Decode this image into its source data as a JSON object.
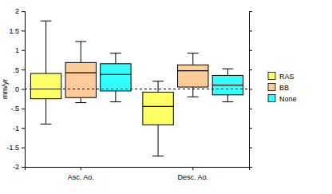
{
  "chart_data": {
    "type": "box",
    "y_label": "mm/yr",
    "categories": [
      "Asc. Ao.",
      "Desc. Ao."
    ],
    "series": [
      {
        "name": "RAS",
        "color": "#ffff66",
        "values": [
          {
            "min": -0.9,
            "q1": -0.25,
            "median": 0.0,
            "q3": 0.4,
            "max": 1.75
          },
          {
            "min": -1.72,
            "q1": -0.92,
            "median": -0.45,
            "q3": -0.08,
            "max": 0.2
          }
        ]
      },
      {
        "name": "BB",
        "color": "#ffcc99",
        "values": [
          {
            "min": -0.35,
            "q1": -0.22,
            "median": 0.42,
            "q3": 0.68,
            "max": 1.22
          },
          {
            "min": -0.2,
            "q1": 0.05,
            "median": 0.47,
            "q3": 0.62,
            "max": 0.92
          }
        ]
      },
      {
        "name": "None",
        "color": "#33ffff",
        "values": [
          {
            "min": -0.33,
            "q1": -0.05,
            "median": 0.37,
            "q3": 0.65,
            "max": 0.92
          },
          {
            "min": -0.33,
            "q1": -0.15,
            "median": 0.1,
            "q3": 0.35,
            "max": 0.52
          }
        ]
      }
    ],
    "hline": 0,
    "ylim": [
      -2,
      2
    ],
    "yticks": [
      -2,
      -1.5,
      -1,
      {
        "value": -0.5,
        "label": "-.5"
      },
      0,
      {
        "value": 0.5,
        "label": ".5"
      },
      1,
      1.5,
      2
    ],
    "grid": false,
    "legend": "right"
  }
}
